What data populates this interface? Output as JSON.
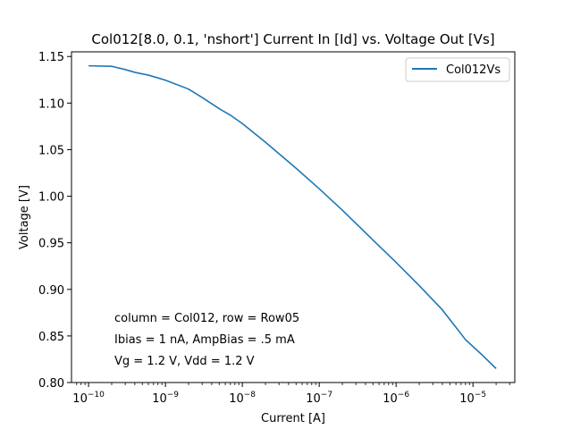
{
  "chart_data": {
    "type": "line",
    "title": "Col012[8.0, 0.1, 'nshort'] Current In [Id] vs. Voltage Out [Vs]",
    "xlabel": "Current [A]",
    "ylabel": "Voltage [V]",
    "xscale": "log",
    "xlim": [
      6e-11,
      3.5e-05
    ],
    "ylim": [
      0.8,
      1.155
    ],
    "xticks": [
      {
        "value": 1e-10,
        "label": "10−10",
        "mantissa": "10",
        "exp": "−10"
      },
      {
        "value": 1e-09,
        "label": "10−9",
        "mantissa": "10",
        "exp": "−9"
      },
      {
        "value": 1e-08,
        "label": "10−8",
        "mantissa": "10",
        "exp": "−8"
      },
      {
        "value": 1e-07,
        "label": "10−7",
        "mantissa": "10",
        "exp": "−7"
      },
      {
        "value": 1e-06,
        "label": "10−6",
        "mantissa": "10",
        "exp": "−6"
      },
      {
        "value": 1e-05,
        "label": "10−5",
        "mantissa": "10",
        "exp": "−5"
      }
    ],
    "yticks": [
      {
        "value": 0.8,
        "label": "0.80"
      },
      {
        "value": 0.85,
        "label": "0.85"
      },
      {
        "value": 0.9,
        "label": "0.90"
      },
      {
        "value": 0.95,
        "label": "0.95"
      },
      {
        "value": 1.0,
        "label": "1.00"
      },
      {
        "value": 1.05,
        "label": "1.05"
      },
      {
        "value": 1.1,
        "label": "1.10"
      },
      {
        "value": 1.15,
        "label": "1.15"
      }
    ],
    "grid": false,
    "legend_position": "top-right",
    "series": [
      {
        "name": "Col012Vs",
        "color": "#1f77b4",
        "x": [
          1e-10,
          2e-10,
          3e-10,
          4e-10,
          6e-10,
          8e-10,
          1e-09,
          2e-09,
          3e-09,
          5e-09,
          7e-09,
          1e-08,
          2e-08,
          5e-08,
          1e-07,
          2e-07,
          5e-07,
          1e-06,
          2e-06,
          4e-06,
          8e-06,
          1.3e-05,
          2e-05
        ],
        "y": [
          1.14,
          1.1395,
          1.136,
          1.133,
          1.13,
          1.127,
          1.1245,
          1.115,
          1.106,
          1.094,
          1.087,
          1.078,
          1.058,
          1.03,
          1.008,
          0.985,
          0.953,
          0.929,
          0.904,
          0.878,
          0.846,
          0.83,
          0.815
        ]
      }
    ],
    "annotations": [
      "column = Col012, row = Row05",
      "Ibias = 1 nA, AmpBias = .5 mA",
      "Vg = 1.2 V, Vdd = 1.2 V"
    ]
  }
}
